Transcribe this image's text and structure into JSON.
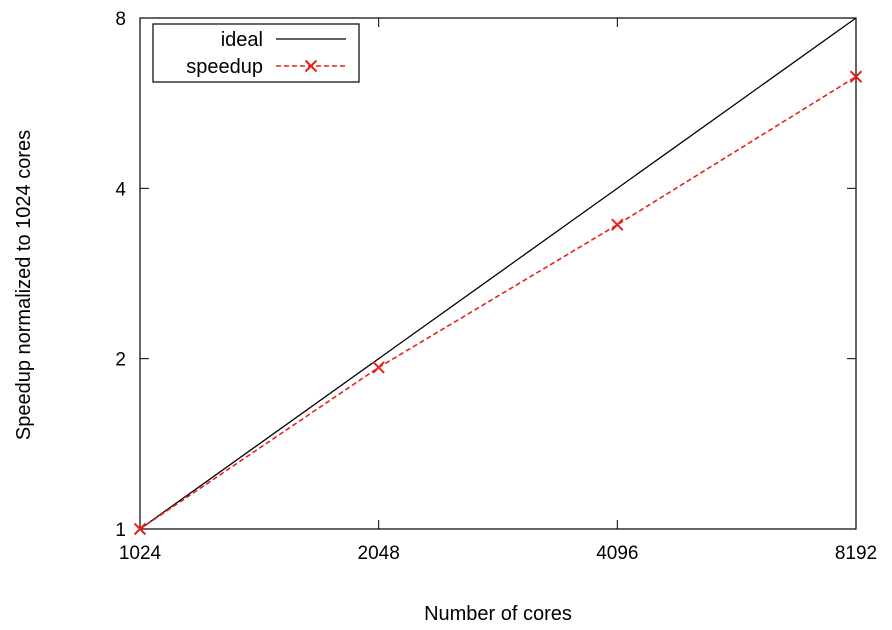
{
  "chart_data": {
    "type": "line",
    "xlabel": "Number of cores",
    "ylabel": "Speedup normalized to 1024 cores",
    "x_scale": "log2",
    "y_scale": "log2",
    "xlim": [
      1024,
      8192
    ],
    "ylim": [
      1,
      8
    ],
    "x_ticks": [
      "1024",
      "2048",
      "4096",
      "8192"
    ],
    "y_ticks": [
      "1",
      "2",
      "4",
      "8"
    ],
    "grid": false,
    "legend_position": "top-left",
    "series": [
      {
        "name": "ideal",
        "color": "#000000",
        "line_style": "solid",
        "marker": "none",
        "x": [
          1024,
          8192
        ],
        "y": [
          1,
          8
        ]
      },
      {
        "name": "speedup",
        "color": "#e8211b",
        "line_style": "dashed",
        "marker": "x",
        "x": [
          1024,
          2048,
          4096,
          8192
        ],
        "y": [
          1,
          1.93,
          3.45,
          6.3
        ]
      }
    ]
  }
}
